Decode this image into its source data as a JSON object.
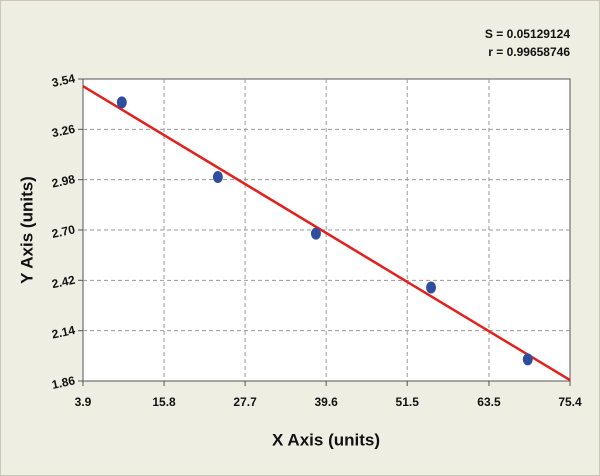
{
  "chart_data": {
    "type": "scatter",
    "x_label": "X Axis (units)",
    "y_label": "Y Axis (units)",
    "annotations": [
      "S = 0.05129124",
      "r = 0.99658746"
    ],
    "xlim": [
      3.9,
      75.4
    ],
    "xticks": [
      3.9,
      15.8,
      27.7,
      39.6,
      51.5,
      63.5,
      75.4
    ],
    "ylim": [
      1.86,
      3.54
    ],
    "yticks": [
      1.86,
      2.14,
      2.42,
      {
        "value": 2.7,
        "label": "2.70"
      },
      2.98,
      3.26,
      3.54
    ],
    "grid": true,
    "series": [
      {
        "type": "scatter",
        "color": "#2f4f9e",
        "x": [
          9.6,
          23.7,
          38.1,
          55.0,
          69.2
        ],
        "values": [
          3.41,
          2.995,
          2.68,
          2.38,
          1.98
        ]
      },
      {
        "type": "line",
        "color": "#e3201b",
        "x": [
          3.9,
          75.4
        ],
        "values": [
          3.5,
          1.865
        ]
      }
    ]
  }
}
